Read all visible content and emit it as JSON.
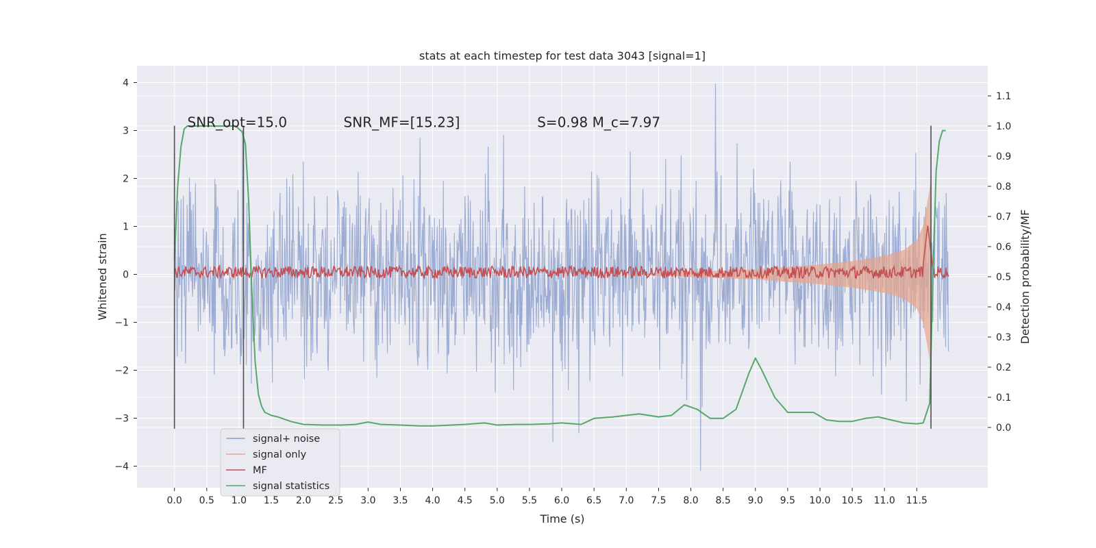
{
  "chart_data": {
    "type": "line",
    "title": "stats at each timestep for test data 3043 [signal=1]",
    "xlabel": "Time (s)",
    "ylabel": "Whitened strain",
    "y2label": "Detection probability/MF",
    "xlim": [
      -0.58,
      12.6
    ],
    "ylim": [
      -4.45,
      4.35
    ],
    "y2lim": [
      -0.2,
      1.2
    ],
    "x_ticks": [
      0.0,
      0.5,
      1.0,
      1.5,
      2.0,
      2.5,
      3.0,
      3.5,
      4.0,
      4.5,
      5.0,
      5.5,
      6.0,
      6.5,
      7.0,
      7.5,
      8.0,
      8.5,
      9.0,
      9.5,
      10.0,
      10.5,
      11.0,
      11.5
    ],
    "x_tick_labels": [
      "0.0",
      "0.5",
      "1.0",
      "1.5",
      "2.0",
      "2.5",
      "3.0",
      "3.5",
      "4.0",
      "4.5",
      "5.0",
      "5.5",
      "6.0",
      "6.5",
      "7.0",
      "7.5",
      "8.0",
      "8.5",
      "9.0",
      "9.5",
      "10.0",
      "10.5",
      "11.0",
      "11.5"
    ],
    "y_ticks": [
      -4,
      -3,
      -2,
      -1,
      0,
      1,
      2,
      3,
      4
    ],
    "y_tick_labels": [
      "−4",
      "−3",
      "−2",
      "−1",
      "0",
      "1",
      "2",
      "3",
      "4"
    ],
    "y2_ticks": [
      0.0,
      0.1,
      0.2,
      0.3,
      0.4,
      0.5,
      0.6,
      0.7,
      0.8,
      0.9,
      1.0,
      1.1
    ],
    "y2_tick_labels": [
      "0.0",
      "0.1",
      "0.2",
      "0.3",
      "0.4",
      "0.5",
      "0.6",
      "0.7",
      "0.8",
      "0.9",
      "1.0",
      "1.1"
    ],
    "grid": true,
    "legend_placement": "lower-left",
    "annotations": [
      {
        "id": "snr-opt",
        "text": "SNR_opt=15.0",
        "x": 0.2
      },
      {
        "id": "snr-mf",
        "text": "SNR_MF=[15.23]",
        "x": 2.62
      },
      {
        "id": "s-mc",
        "text": "S=0.98   M_c=7.97",
        "x": 5.62
      }
    ],
    "annotation_y": 3.07,
    "vertical_markers": [
      {
        "x": 0.0,
        "y_range": [
          -3.22,
          3.1
        ]
      },
      {
        "x": 1.07,
        "y_range": [
          -3.22,
          3.1
        ]
      },
      {
        "x": 11.72,
        "y_range": [
          -3.22,
          3.1
        ]
      }
    ],
    "series": [
      {
        "name": "signal+ noise",
        "axis": "left",
        "color": "#8da0cb",
        "x_range": [
          0.0,
          11.99
        ],
        "upper_envelope_trend": [
          1.9,
          2.8
        ],
        "lower_envelope_trend": [
          -1.9,
          -2.9
        ],
        "extremes": {
          "max": 3.98,
          "max_x": 8.38,
          "min": -4.1,
          "min_x": 8.15
        },
        "notes": "dense noise band roughly ±2 to ±3"
      },
      {
        "name": "signal only",
        "axis": "left",
        "color": "#e8a48a",
        "x": [
          8.0,
          9.0,
          10.0,
          10.5,
          11.0,
          11.3,
          11.5,
          11.6,
          11.65,
          11.7,
          11.72
        ],
        "amplitude": [
          0.05,
          0.1,
          0.2,
          0.27,
          0.38,
          0.5,
          0.7,
          1.0,
          1.35,
          1.75,
          2.0
        ]
      },
      {
        "name": "MF",
        "axis": "right",
        "color": "#c44e52",
        "x_range": [
          0.0,
          11.99
        ],
        "baseline": 0.515,
        "spread": 0.02,
        "peak": {
          "x": 11.67,
          "value": 0.67
        }
      },
      {
        "name": "signal statistics",
        "axis": "right",
        "color": "#55a868",
        "x": [
          0.0,
          0.05,
          0.1,
          0.15,
          0.2,
          0.3,
          0.5,
          0.8,
          0.95,
          1.0,
          1.05,
          1.1,
          1.15,
          1.2,
          1.25,
          1.3,
          1.35,
          1.4,
          1.5,
          1.6,
          1.8,
          2.0,
          2.3,
          2.6,
          2.8,
          3.0,
          3.2,
          3.5,
          3.8,
          4.0,
          4.3,
          4.5,
          4.8,
          5.0,
          5.3,
          5.5,
          5.8,
          6.0,
          6.3,
          6.5,
          6.8,
          7.0,
          7.2,
          7.5,
          7.7,
          7.9,
          8.1,
          8.3,
          8.5,
          8.7,
          8.9,
          9.0,
          9.1,
          9.3,
          9.5,
          9.7,
          9.9,
          10.1,
          10.3,
          10.5,
          10.7,
          10.9,
          11.1,
          11.3,
          11.5,
          11.6,
          11.7,
          11.75,
          11.8,
          11.85,
          11.9,
          11.95
        ],
        "y": [
          0.56,
          0.8,
          0.93,
          0.99,
          1.0,
          1.0,
          1.0,
          1.0,
          1.0,
          0.99,
          0.98,
          0.94,
          0.75,
          0.45,
          0.22,
          0.11,
          0.07,
          0.05,
          0.04,
          0.035,
          0.02,
          0.01,
          0.008,
          0.008,
          0.01,
          0.018,
          0.01,
          0.008,
          0.005,
          0.005,
          0.008,
          0.01,
          0.015,
          0.008,
          0.01,
          0.01,
          0.012,
          0.015,
          0.01,
          0.03,
          0.035,
          0.04,
          0.045,
          0.035,
          0.04,
          0.075,
          0.06,
          0.03,
          0.03,
          0.06,
          0.18,
          0.23,
          0.19,
          0.1,
          0.05,
          0.05,
          0.05,
          0.025,
          0.02,
          0.02,
          0.03,
          0.035,
          0.025,
          0.015,
          0.012,
          0.015,
          0.08,
          0.5,
          0.85,
          0.95,
          0.985,
          0.985
        ]
      }
    ]
  }
}
